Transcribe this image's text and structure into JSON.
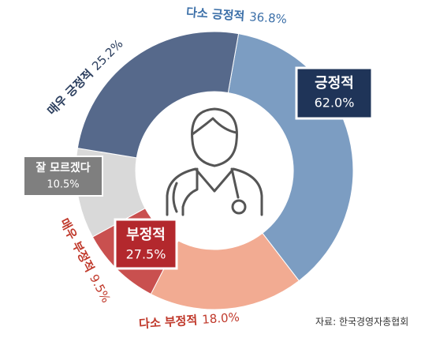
{
  "chart_data": {
    "type": "donut",
    "categories": [
      "다소 긍정적",
      "다소 부정적",
      "매우 부정적",
      "잘 모르겠다",
      "매우 긍정적"
    ],
    "values": [
      36.8,
      18.0,
      9.5,
      10.5,
      25.2
    ],
    "value_labels": [
      "36.8%",
      "18.0%",
      "9.5%",
      "10.5%",
      "25.2%"
    ],
    "colors": [
      "#7c9dc2",
      "#f2ab92",
      "#c9504f",
      "#d9d9d9",
      "#56698b"
    ],
    "summary": [
      {
        "label": "긍정적",
        "value": 62.0,
        "value_label": "62.0%",
        "color": "#1f3458"
      },
      {
        "label": "부정적",
        "value": 27.5,
        "value_label": "27.5%",
        "color": "#b3282d"
      }
    ],
    "source": "자료: 한국경영자총협회"
  }
}
